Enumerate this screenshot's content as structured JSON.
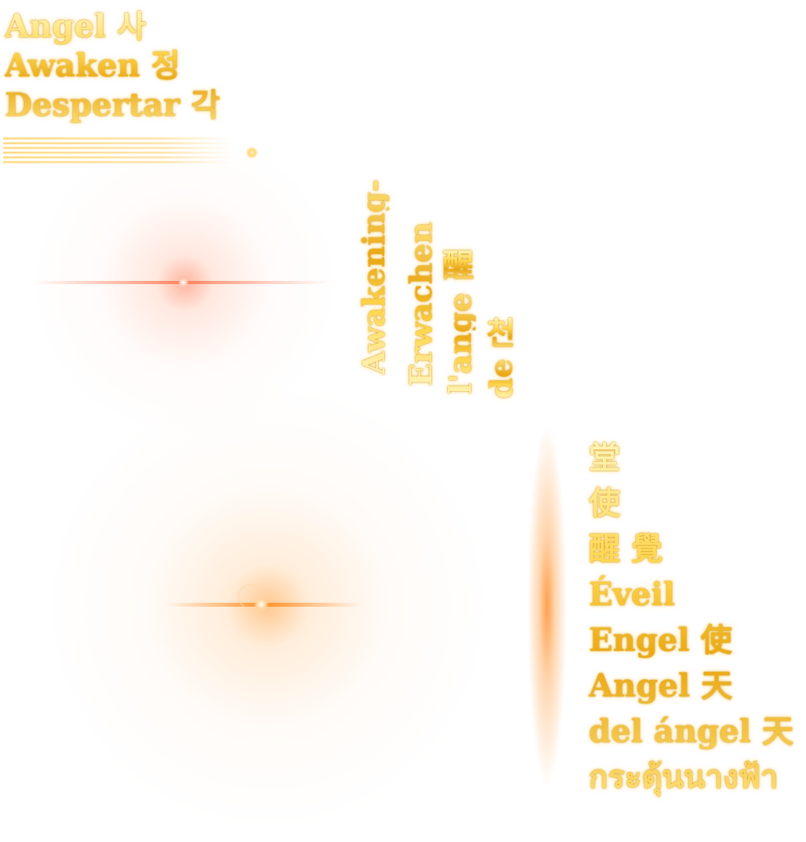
{
  "top_left": {
    "lines": [
      "Angel 사",
      "Awaken 정",
      "Despertar 각"
    ]
  },
  "vertical_texts": {
    "awakening": "Awakening-",
    "erwachen": "Erwachen",
    "l_ange": "l'ange",
    "de": "de",
    "kanji_seong": "醒",
    "kor_cheon": "천"
  },
  "bottom_right": {
    "lines": [
      "堂",
      "使",
      "醒 覺",
      "Éveil",
      "Engel 使",
      "Angel 天",
      "del ángel 天",
      "กระตุ้นนางฟ้า"
    ]
  },
  "colors": {
    "gold": "#f2b81f",
    "flare_red": "#ff7850",
    "flare_orange": "#ff9a30"
  }
}
